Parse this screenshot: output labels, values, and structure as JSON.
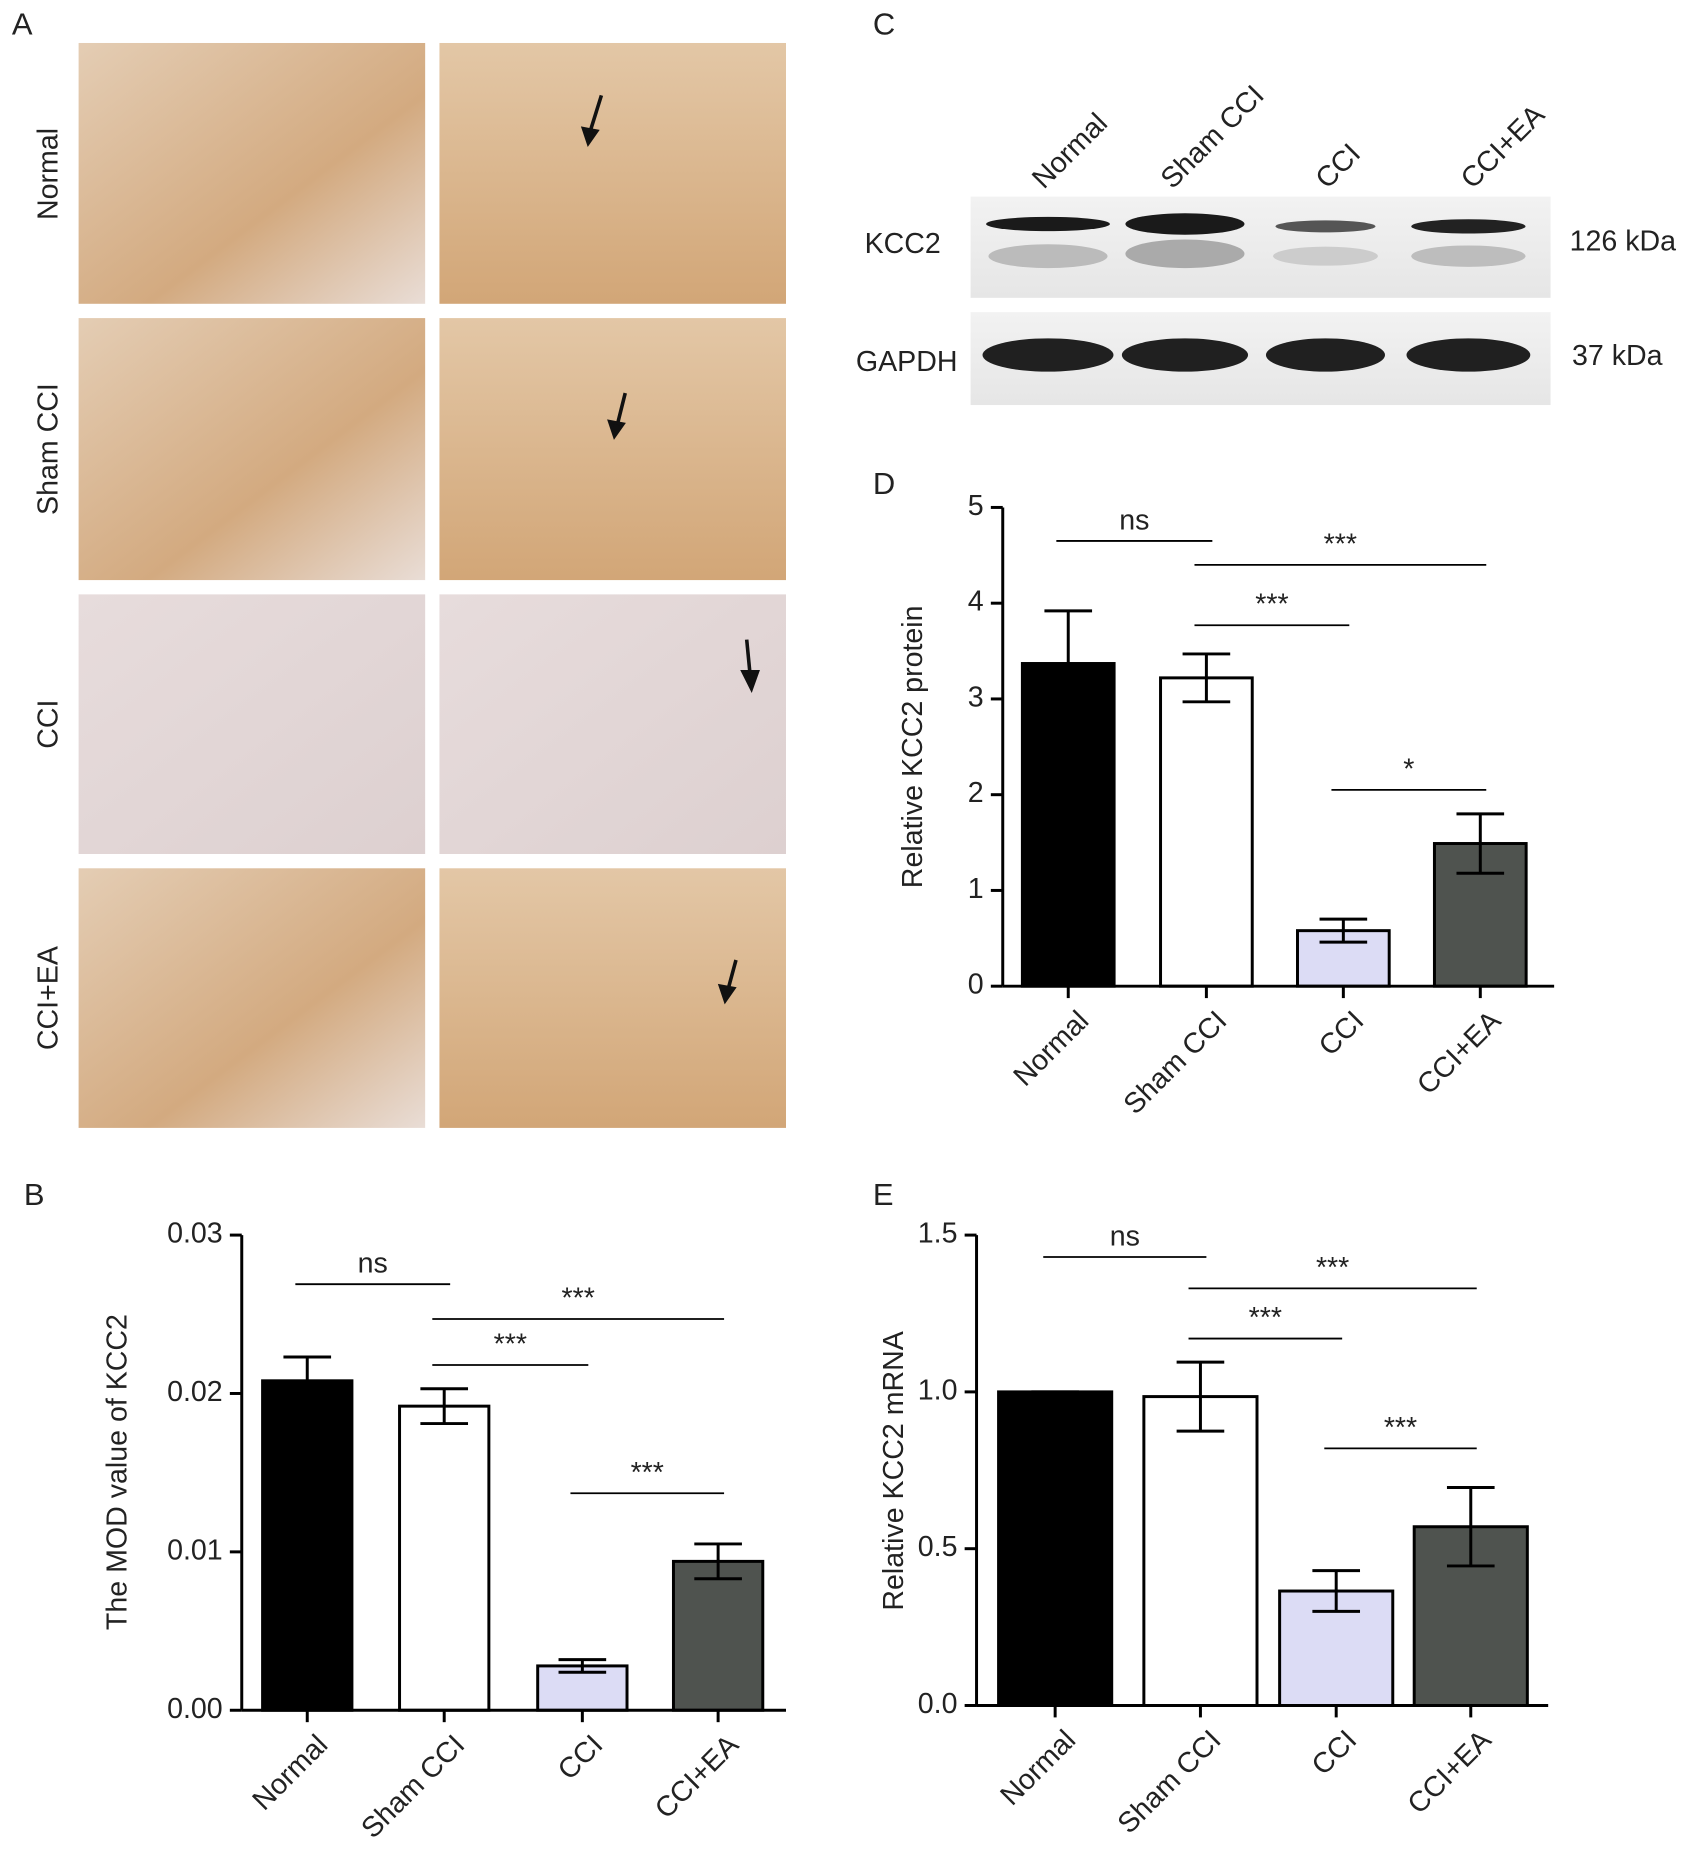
{
  "figure_a": {
    "label": "A",
    "row_labels": [
      "Normal",
      "Sham CCI",
      "CCI",
      "CCI+EA"
    ]
  },
  "figure_c": {
    "label": "C",
    "lanes": [
      "Normal",
      "Sham CCI",
      "CCI",
      "CCI+EA"
    ],
    "bands": [
      "KCC2",
      "GAPDH"
    ],
    "sizes": [
      "126 kDa",
      "37 kDa"
    ]
  },
  "chart_data": [
    {
      "type": "bar",
      "label": "B",
      "y_label": "The MOD value of KCC2",
      "categories": [
        "Normal",
        "Sham CCI",
        "CCI",
        "CCI+EA"
      ],
      "values": [
        0.0208,
        0.0192,
        0.0028,
        0.0094
      ],
      "errors": [
        0.0015,
        0.0011,
        0.0004,
        0.0011
      ],
      "colors": [
        "#000000",
        "#ffffff",
        "#dcdcf5",
        "#4f534f"
      ],
      "ylim": [
        0,
        0.03
      ],
      "yticks": [
        {
          "value": 0,
          "label": "0.00"
        },
        0.01,
        0.02,
        0.03
      ],
      "annotations": [
        {
          "text": "ns",
          "from": 0,
          "to": 1,
          "y": 0.0269
        },
        {
          "text": "***",
          "from": 1,
          "to": 3,
          "y": 0.0247
        },
        {
          "text": "***",
          "from": 1,
          "to": 2,
          "y": 0.0218
        },
        {
          "text": "***",
          "from": 2,
          "to": 3,
          "y": 0.0137
        }
      ]
    },
    {
      "type": "bar",
      "label": "D",
      "y_label": "Relative KCC2 protein",
      "categories": [
        "Normal",
        "Sham CCI",
        "CCI",
        "CCI+EA"
      ],
      "values": [
        3.37,
        3.22,
        0.58,
        1.49
      ],
      "errors": [
        0.55,
        0.25,
        0.12,
        0.31
      ],
      "colors": [
        "#000000",
        "#ffffff",
        "#dcdcf5",
        "#4f534f"
      ],
      "ylim": [
        0,
        5
      ],
      "yticks": [
        0,
        1,
        2,
        3,
        4,
        5
      ],
      "annotations": [
        {
          "text": "ns",
          "from": 0,
          "to": 1,
          "y": 4.65
        },
        {
          "text": "***",
          "from": 1,
          "to": 3,
          "y": 4.4
        },
        {
          "text": "***",
          "from": 1,
          "to": 2,
          "y": 3.77
        },
        {
          "text": "*",
          "from": 2,
          "to": 3,
          "y": 2.05
        }
      ]
    },
    {
      "type": "bar",
      "label": "E",
      "y_label": "Relative KCC2 mRNA",
      "categories": [
        "Normal",
        "Sham CCI",
        "CCI",
        "CCI+EA"
      ],
      "values": [
        1.0,
        0.985,
        0.365,
        0.57
      ],
      "errors": [
        0,
        0.11,
        0.065,
        0.125
      ],
      "colors": [
        "#000000",
        "#ffffff",
        "#dcdcf5",
        "#4f534f"
      ],
      "ylim": [
        0,
        1.5
      ],
      "yticks": [
        {
          "value": 0,
          "label": "0.0"
        },
        0.5,
        {
          "value": 1,
          "label": "1.0"
        },
        1.5
      ],
      "annotations": [
        {
          "text": "ns",
          "from": 0,
          "to": 1,
          "y": 1.43
        },
        {
          "text": "***",
          "from": 1,
          "to": 3,
          "y": 1.33
        },
        {
          "text": "***",
          "from": 1,
          "to": 2,
          "y": 1.17
        },
        {
          "text": "***",
          "from": 2,
          "to": 3,
          "y": 0.82
        }
      ]
    }
  ]
}
